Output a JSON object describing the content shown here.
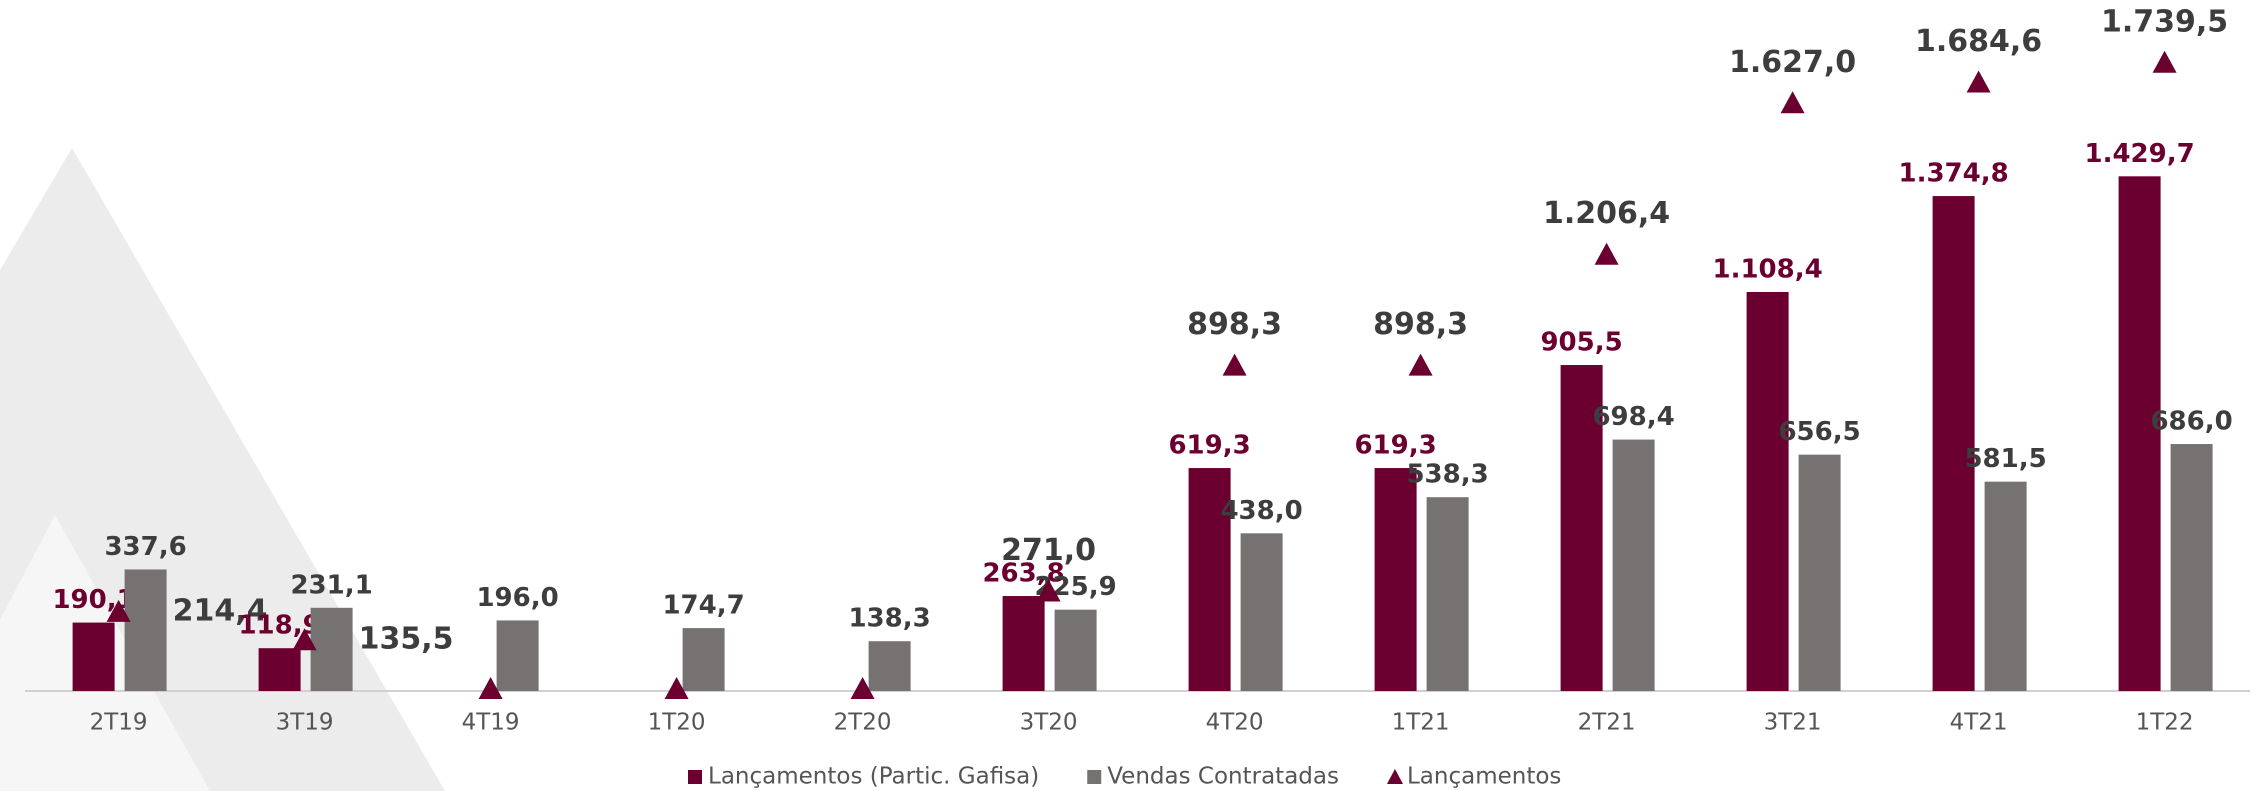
{
  "chart_data": {
    "type": "bar",
    "categories": [
      "2T19",
      "3T19",
      "4T19",
      "1T20",
      "2T20",
      "3T20",
      "4T20",
      "1T21",
      "2T21",
      "3T21",
      "4T21",
      "1T22"
    ],
    "ylim": [
      0,
      1900
    ],
    "series": [
      {
        "name": "Lançamentos (Partic. Gafisa)",
        "color": "#6b0030",
        "type": "bar",
        "values": [
          190.1,
          118.9,
          null,
          null,
          null,
          263.8,
          619.3,
          619.3,
          905.5,
          1108.4,
          1374.8,
          1429.7
        ],
        "value_labels": [
          "190,1",
          "118,9",
          null,
          null,
          null,
          "263,8",
          "619,3",
          "619,3",
          "905,5",
          "1.108,4",
          "1.374,8",
          "1.429,7"
        ]
      },
      {
        "name": "Vendas Contratadas",
        "color": "#777272",
        "type": "bar",
        "values": [
          337.6,
          231.1,
          196.0,
          174.7,
          138.3,
          225.9,
          438.0,
          538.3,
          698.4,
          656.5,
          581.5,
          686.0
        ],
        "value_labels": [
          "337,6",
          "231,1",
          "196,0",
          "174,7",
          "138,3",
          "225,9",
          "438,0",
          "538,3",
          "698,4",
          "656,5",
          "581,5",
          "686,0"
        ]
      },
      {
        "name": "Lançamentos",
        "color": "#6b0030",
        "type": "triangle",
        "values": [
          214.4,
          135.5,
          0,
          0,
          0,
          271.0,
          898.3,
          898.3,
          1206.4,
          1627.0,
          1684.6,
          1739.5
        ],
        "value_labels": [
          "214,4",
          "135,5",
          null,
          null,
          null,
          "271,0",
          "898,3",
          "898,3",
          "1.206,4",
          "1.627,0",
          "1.684,6",
          "1.739,5"
        ]
      }
    ]
  }
}
